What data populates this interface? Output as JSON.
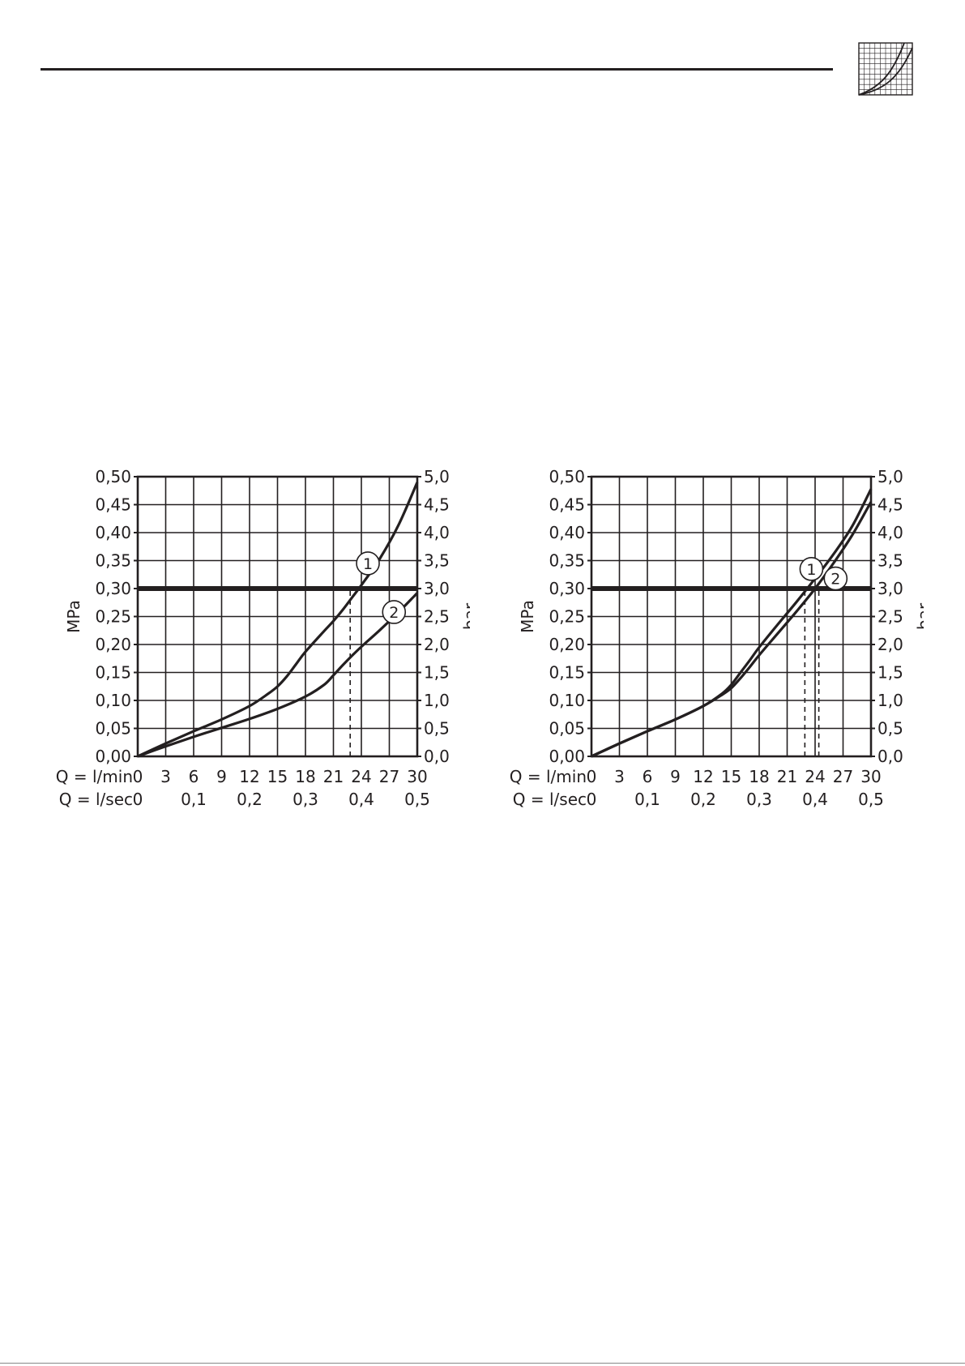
{
  "page": {
    "line_color": "#231f20",
    "grid_color": "#231f20"
  },
  "header": {
    "icon": "pressure-loss-graph-icon"
  },
  "chart_data": [
    {
      "type": "line",
      "ylabel_left": "MPa",
      "ylabel_right": "bar",
      "x_label_primary": "Q = l/min",
      "x_label_secondary": "Q = l/sec",
      "x_ticks_primary": [
        "0",
        "3",
        "6",
        "9",
        "12",
        "15",
        "18",
        "21",
        "24",
        "27",
        "30"
      ],
      "x_ticks_secondary": [
        {
          "label": "0",
          "lmin": 0
        },
        {
          "label": "0,1",
          "lmin": 6
        },
        {
          "label": "0,2",
          "lmin": 12
        },
        {
          "label": "0,3",
          "lmin": 18
        },
        {
          "label": "0,4",
          "lmin": 24
        },
        {
          "label": "0,5",
          "lmin": 30
        }
      ],
      "xlim": [
        0,
        30
      ],
      "ylim": [
        0,
        0.5
      ],
      "y_ticks_left": [
        "0,00",
        "0,05",
        "0,10",
        "0,15",
        "0,20",
        "0,25",
        "0,30",
        "0,35",
        "0,40",
        "0,45",
        "0,50"
      ],
      "y_ticks_right": [
        "0,0",
        "0,5",
        "1,0",
        "1,5",
        "2,0",
        "2,5",
        "3,0",
        "3,5",
        "4,0",
        "4,5",
        "5,0"
      ],
      "reference_line_mpa": 0.3,
      "series": [
        {
          "name": "1",
          "x": [
            0,
            3,
            6,
            9,
            12,
            14,
            15,
            16,
            17,
            18,
            20,
            21,
            22,
            23,
            24,
            26,
            28,
            30
          ],
          "y": [
            0,
            0.023,
            0.045,
            0.066,
            0.09,
            0.112,
            0.125,
            0.143,
            0.165,
            0.187,
            0.224,
            0.242,
            0.262,
            0.284,
            0.306,
            0.354,
            0.414,
            0.49
          ],
          "label_at": [
            24.7,
            0.345
          ],
          "drop_x": 22.8
        },
        {
          "name": "2",
          "x": [
            0,
            3,
            6,
            9,
            12,
            15,
            18,
            20,
            21,
            22,
            23,
            24,
            26,
            28,
            30
          ],
          "y": [
            0,
            0.018,
            0.035,
            0.051,
            0.067,
            0.085,
            0.107,
            0.128,
            0.145,
            0.163,
            0.18,
            0.196,
            0.226,
            0.258,
            0.292
          ],
          "label_at": [
            27.5,
            0.258
          ]
        }
      ]
    },
    {
      "type": "line",
      "ylabel_left": "MPa",
      "ylabel_right": "bar",
      "x_label_primary": "Q = l/min",
      "x_label_secondary": "Q = l/sec",
      "x_ticks_primary": [
        "0",
        "3",
        "6",
        "9",
        "12",
        "15",
        "18",
        "21",
        "24",
        "27",
        "30"
      ],
      "x_ticks_secondary": [
        {
          "label": "0",
          "lmin": 0
        },
        {
          "label": "0,1",
          "lmin": 6
        },
        {
          "label": "0,2",
          "lmin": 12
        },
        {
          "label": "0,3",
          "lmin": 18
        },
        {
          "label": "0,4",
          "lmin": 24
        },
        {
          "label": "0,5",
          "lmin": 30
        }
      ],
      "xlim": [
        0,
        30
      ],
      "ylim": [
        0,
        0.5
      ],
      "y_ticks_left": [
        "0,00",
        "0,05",
        "0,10",
        "0,15",
        "0,20",
        "0,25",
        "0,30",
        "0,35",
        "0,40",
        "0,45",
        "0,50"
      ],
      "y_ticks_right": [
        "0,0",
        "0,5",
        "1,0",
        "1,5",
        "2,0",
        "2,5",
        "3,0",
        "3,5",
        "4,0",
        "4,5",
        "5,0"
      ],
      "reference_line_mpa": 0.3,
      "series": [
        {
          "name": "1",
          "x": [
            0,
            3,
            6,
            9,
            12,
            14,
            15,
            16,
            17,
            18,
            20,
            22,
            24,
            26,
            28,
            30
          ],
          "y": [
            0,
            0.023,
            0.045,
            0.066,
            0.09,
            0.112,
            0.128,
            0.15,
            0.172,
            0.195,
            0.236,
            0.276,
            0.318,
            0.362,
            0.412,
            0.478
          ],
          "label_at": [
            23.6,
            0.335
          ],
          "drop_x": 22.9
        },
        {
          "name": "2",
          "x": [
            0,
            3,
            6,
            9,
            12,
            14,
            15,
            16,
            17,
            18,
            20,
            22,
            24,
            26,
            28,
            30
          ],
          "y": [
            0,
            0.023,
            0.045,
            0.066,
            0.09,
            0.11,
            0.122,
            0.14,
            0.16,
            0.181,
            0.22,
            0.259,
            0.3,
            0.346,
            0.396,
            0.455
          ],
          "label_at": [
            26.2,
            0.318
          ],
          "drop_x": 24.4
        }
      ]
    }
  ]
}
